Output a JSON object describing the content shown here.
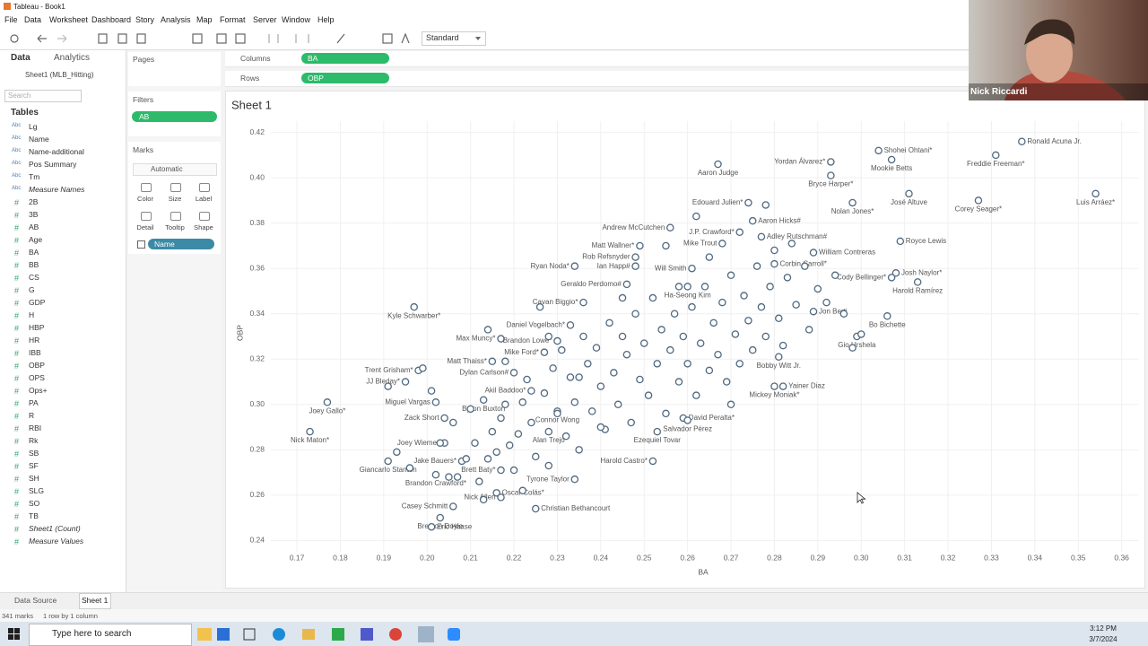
{
  "window_title": "Tableau - Book1",
  "menu": [
    "File",
    "Data",
    "Worksheet",
    "Dashboard",
    "Story",
    "Analysis",
    "Map",
    "Format",
    "Server",
    "Window",
    "Help"
  ],
  "toolbar": {
    "preset": "Standard"
  },
  "data_pane": {
    "tabs": [
      "Data",
      "Analytics"
    ],
    "source": "Sheet1 (MLB_Hitting)",
    "search": "Search",
    "tables_header": "Tables",
    "fields": [
      {
        "icon": "Abc",
        "name": "Lg"
      },
      {
        "icon": "Abc",
        "name": "Name"
      },
      {
        "icon": "Abc",
        "name": "Name-additional"
      },
      {
        "icon": "Abc",
        "name": "Pos Summary"
      },
      {
        "icon": "Abc",
        "name": "Tm"
      },
      {
        "icon": "Abc",
        "name": "Measure Names",
        "italic": true
      },
      {
        "icon": "#",
        "name": "2B"
      },
      {
        "icon": "#",
        "name": "3B"
      },
      {
        "icon": "#",
        "name": "AB"
      },
      {
        "icon": "#",
        "name": "Age"
      },
      {
        "icon": "#",
        "name": "BA"
      },
      {
        "icon": "#",
        "name": "BB"
      },
      {
        "icon": "#",
        "name": "CS"
      },
      {
        "icon": "#",
        "name": "G"
      },
      {
        "icon": "#",
        "name": "GDP"
      },
      {
        "icon": "#",
        "name": "H"
      },
      {
        "icon": "#",
        "name": "HBP"
      },
      {
        "icon": "#",
        "name": "HR"
      },
      {
        "icon": "#",
        "name": "IBB"
      },
      {
        "icon": "#",
        "name": "OBP"
      },
      {
        "icon": "#",
        "name": "OPS"
      },
      {
        "icon": "#",
        "name": "Ops+"
      },
      {
        "icon": "#",
        "name": "PA"
      },
      {
        "icon": "#",
        "name": "R"
      },
      {
        "icon": "#",
        "name": "RBI"
      },
      {
        "icon": "#",
        "name": "Rk"
      },
      {
        "icon": "#",
        "name": "SB"
      },
      {
        "icon": "#",
        "name": "SF"
      },
      {
        "icon": "#",
        "name": "SH"
      },
      {
        "icon": "#",
        "name": "SLG"
      },
      {
        "icon": "#",
        "name": "SO"
      },
      {
        "icon": "#",
        "name": "TB"
      },
      {
        "icon": "#",
        "name": "Sheet1 (Count)",
        "italic": true
      },
      {
        "icon": "#",
        "name": "Measure Values",
        "italic": true
      }
    ]
  },
  "cards": {
    "pages": "Pages",
    "filters": "Filters",
    "filter_pill": "AB",
    "marks": "Marks",
    "mark_type": "Automatic",
    "mark_buttons": [
      "Color",
      "Size",
      "Label",
      "Detail",
      "Tooltip",
      "Shape"
    ],
    "name_pill": "Name"
  },
  "shelves": {
    "columns": {
      "label": "Columns",
      "pill": "BA"
    },
    "rows": {
      "label": "Rows",
      "pill": "OBP"
    }
  },
  "tabs": {
    "data_source": "Data Source",
    "sheet": "Sheet 1"
  },
  "status": {
    "marks": "341 marks",
    "layout": "1 row by 1 column"
  },
  "taskbar": {
    "search": "Type here to search",
    "time": "3:12 PM",
    "date": "3/7/2024"
  },
  "webcam": {
    "name": "Nick Riccardi"
  },
  "chart_data": {
    "type": "scatter",
    "title": "Sheet 1",
    "x_label": "BA",
    "y_label": "OBP",
    "color": "#51697f",
    "grid": true,
    "xlim": [
      0.164,
      0.364
    ],
    "ylim": [
      0.235,
      0.425
    ],
    "xticks": [
      0.17,
      0.18,
      0.19,
      {
        "value": 0.2,
        "label": "0.20"
      },
      0.21,
      0.22,
      0.23,
      0.24,
      0.25,
      0.26,
      0.27,
      0.28,
      0.29,
      {
        "value": 0.3,
        "label": "0.30"
      },
      0.31,
      0.32,
      0.33,
      0.34,
      0.35,
      0.36
    ],
    "yticks": [
      0.24,
      0.26,
      0.28,
      {
        "value": 0.3,
        "label": "0.30"
      },
      0.32,
      0.34,
      0.36,
      0.38,
      {
        "value": 0.4,
        "label": "0.40"
      },
      0.42
    ],
    "labels": [
      "Ronald Acuna Jr.",
      "Shohei Ohtani*",
      "Freddie Freeman*",
      "Mookie Betts",
      "Yordan Álvarez*",
      "Aaron Judge",
      "Bryce Harper*",
      "Nolan Jones*",
      "José Altuve",
      "Corey Seager*",
      "Luis Arráez*",
      "Edouard Julien*",
      "Aaron Hicks#",
      "Andrew McCutchen",
      "J.P. Crawford*",
      "Adley Rutschman#",
      "Matt Wallner*",
      "Mike Trout",
      "Royce Lewis",
      "William Contreras",
      "Rob Refsnyder",
      "Corbin Carroll*",
      "Ian Happ#",
      "Ryan Noda*",
      "Will Smith",
      "Josh Naylor*",
      "Cody Bellinger*",
      "Geraldo Perdomo#",
      "Harold Ramírez",
      "Ha-Seong Kim",
      "Cavan Biggio*",
      "Kyle Schwarber*",
      "Jon Berti",
      "Bo Bichette",
      "Daniel Vogelbach*",
      "Max Muncy*",
      "Brandon Lowe*",
      "Gio Urshela",
      "Mike Ford*",
      "Matt Thaiss*",
      "Bobby Witt Jr.",
      "Trent Grisham*",
      "Dylan Carlson#",
      "JJ Bleday*",
      "Yainer Diaz",
      "Akil Baddoo*",
      "Mickey Moniak*",
      "Miguel Vargas",
      "Joey Gallo*",
      "Byron Buxton",
      "David Peralta*",
      "Zack Short",
      "Connor Wong",
      "Salvador Pérez",
      "Nick Maton*",
      "Alan Trejo",
      "Joey Wiemer",
      "Ezequiel Tovar",
      "Jake Bauers*",
      "Giancarlo Stanton",
      "Harold Castro*",
      "Brett Baty*",
      "Brandon Crawford*",
      "Tyrone Taylor",
      "Oscar Colás*",
      "Nick Allen",
      "Casey Schmitt",
      "Brenton Doyle",
      "Christian Bethancourt",
      "Eric Haase",
      null,
      null,
      null,
      null,
      null,
      null,
      null,
      null,
      null,
      null,
      null,
      null,
      null,
      null,
      null,
      null,
      null,
      null,
      null,
      null,
      null,
      null,
      null,
      null,
      null,
      null,
      null,
      null,
      null,
      null,
      null,
      null,
      null,
      null,
      null,
      null,
      null,
      null,
      null,
      null,
      null,
      null,
      null,
      null,
      null,
      null,
      null,
      null,
      null,
      null,
      null,
      null,
      null,
      null,
      null,
      null,
      null,
      null,
      null,
      null,
      null,
      null,
      null,
      null,
      null,
      null,
      null,
      null,
      null,
      null,
      null,
      null,
      null,
      null,
      null,
      null,
      null,
      null,
      null,
      null,
      null,
      null,
      null,
      null,
      null,
      null,
      null,
      null,
      null,
      null,
      null,
      null,
      null,
      null,
      null,
      null,
      null,
      null,
      null,
      null,
      null,
      null,
      null,
      null,
      null,
      null,
      null,
      null
    ],
    "x": [
      0.337,
      0.304,
      0.331,
      0.307,
      0.293,
      0.267,
      0.293,
      0.298,
      0.311,
      0.327,
      0.354,
      0.274,
      0.275,
      0.256,
      0.272,
      0.277,
      0.249,
      0.268,
      0.309,
      0.289,
      0.248,
      0.28,
      0.248,
      0.234,
      0.261,
      0.308,
      0.307,
      0.246,
      0.313,
      0.26,
      0.236,
      0.197,
      0.289,
      0.306,
      0.233,
      0.217,
      0.23,
      0.299,
      0.227,
      0.215,
      0.281,
      0.198,
      0.22,
      0.195,
      0.282,
      0.224,
      0.28,
      0.202,
      0.177,
      0.213,
      0.259,
      0.204,
      0.23,
      0.26,
      0.173,
      0.228,
      0.204,
      0.253,
      0.208,
      0.191,
      0.252,
      0.217,
      0.202,
      0.234,
      0.216,
      0.217,
      0.206,
      0.203,
      0.225,
      0.201,
      0.191,
      0.193,
      0.196,
      0.199,
      0.201,
      0.203,
      0.205,
      0.206,
      0.207,
      0.209,
      0.21,
      0.211,
      0.212,
      0.213,
      0.214,
      0.214,
      0.215,
      0.216,
      0.217,
      0.218,
      0.219,
      0.22,
      0.221,
      0.222,
      0.222,
      0.223,
      0.224,
      0.225,
      0.226,
      0.227,
      0.228,
      0.229,
      0.23,
      0.231,
      0.232,
      0.233,
      0.234,
      0.235,
      0.236,
      0.237,
      0.238,
      0.239,
      0.24,
      0.241,
      0.242,
      0.243,
      0.244,
      0.245,
      0.246,
      0.247,
      0.248,
      0.249,
      0.25,
      0.251,
      0.252,
      0.253,
      0.254,
      0.255,
      0.256,
      0.257,
      0.258,
      0.259,
      0.26,
      0.261,
      0.262,
      0.263,
      0.264,
      0.265,
      0.266,
      0.267,
      0.268,
      0.269,
      0.27,
      0.271,
      0.272,
      0.273,
      0.274,
      0.275,
      0.276,
      0.277,
      0.278,
      0.279,
      0.28,
      0.281,
      0.282,
      0.283,
      0.284,
      0.285,
      0.287,
      0.288,
      0.29,
      0.292,
      0.294,
      0.296,
      0.298,
      0.3,
      0.265,
      0.258,
      0.245,
      0.235,
      0.218,
      0.228,
      0.24,
      0.27,
      0.278,
      0.262,
      0.255
    ],
    "values": [
      0.416,
      0.412,
      0.41,
      0.408,
      0.407,
      0.406,
      0.401,
      0.389,
      0.393,
      0.39,
      0.393,
      0.389,
      0.381,
      0.378,
      0.376,
      0.374,
      0.37,
      0.371,
      0.372,
      0.367,
      0.365,
      0.362,
      0.361,
      0.361,
      0.36,
      0.358,
      0.356,
      0.353,
      0.354,
      0.352,
      0.345,
      0.343,
      0.341,
      0.339,
      0.335,
      0.329,
      0.328,
      0.33,
      0.323,
      0.319,
      0.321,
      0.315,
      0.314,
      0.31,
      0.308,
      0.306,
      0.308,
      0.301,
      0.301,
      0.302,
      0.294,
      0.294,
      0.297,
      0.293,
      0.288,
      0.288,
      0.283,
      0.288,
      0.275,
      0.275,
      0.275,
      0.271,
      0.269,
      0.267,
      0.261,
      0.259,
      0.255,
      0.25,
      0.254,
      0.246,
      0.308,
      0.279,
      0.272,
      0.316,
      0.306,
      0.283,
      0.268,
      0.292,
      0.268,
      0.276,
      0.298,
      0.283,
      0.266,
      0.258,
      0.333,
      0.276,
      0.288,
      0.279,
      0.294,
      0.319,
      0.282,
      0.271,
      0.287,
      0.262,
      0.301,
      0.311,
      0.292,
      0.277,
      0.343,
      0.305,
      0.273,
      0.316,
      0.296,
      0.324,
      0.286,
      0.312,
      0.301,
      0.28,
      0.33,
      0.318,
      0.297,
      0.325,
      0.308,
      0.289,
      0.336,
      0.314,
      0.3,
      0.33,
      0.322,
      0.292,
      0.34,
      0.311,
      0.327,
      0.304,
      0.347,
      0.318,
      0.333,
      0.296,
      0.324,
      0.34,
      0.31,
      0.33,
      0.318,
      0.343,
      0.304,
      0.327,
      0.352,
      0.315,
      0.336,
      0.322,
      0.345,
      0.31,
      0.357,
      0.331,
      0.318,
      0.348,
      0.337,
      0.324,
      0.361,
      0.343,
      0.33,
      0.352,
      0.368,
      0.338,
      0.326,
      0.356,
      0.371,
      0.344,
      0.361,
      0.333,
      0.351,
      0.345,
      0.357,
      0.34,
      0.325,
      0.331,
      0.365,
      0.352,
      0.347,
      0.312,
      0.3,
      0.33,
      0.29,
      0.3,
      0.388,
      0.383,
      0.37
    ]
  }
}
